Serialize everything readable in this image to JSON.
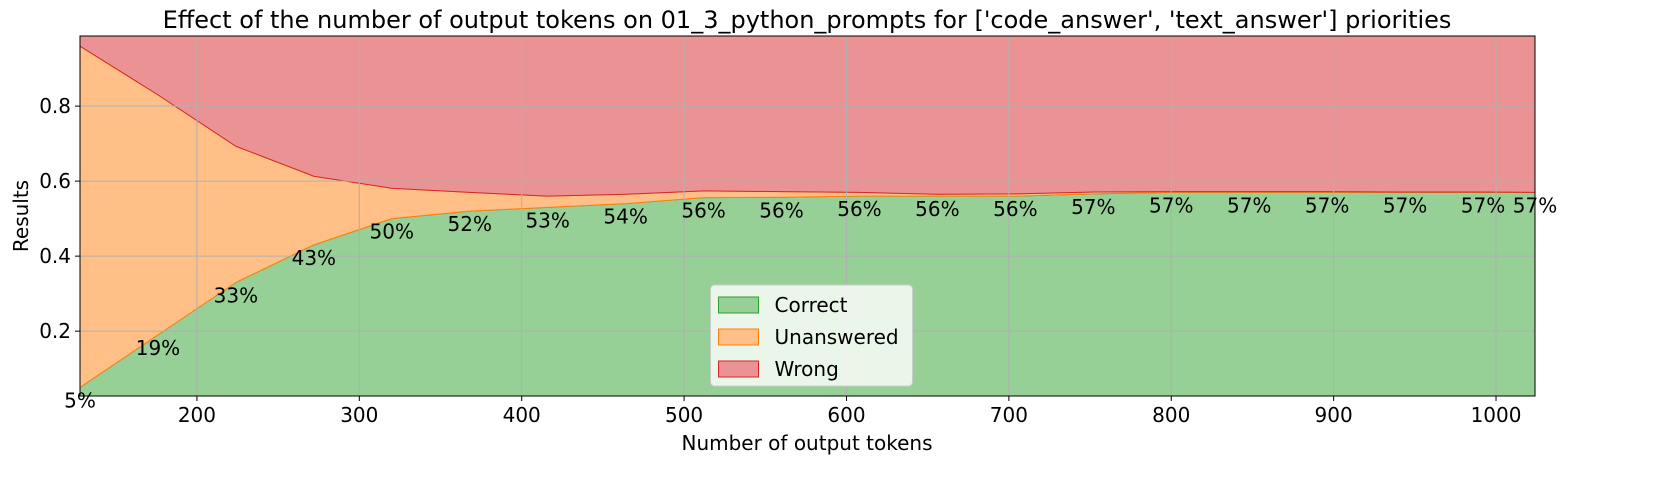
{
  "chart_data": {
    "type": "stacked_area",
    "title": "Effect of the number of output tokens on 01_3_python_prompts for ['code_answer', 'text_answer'] priorities",
    "x_label": "Number of output tokens",
    "y_label": "Results",
    "x": [
      128,
      176,
      224,
      272,
      320,
      368,
      416,
      464,
      512,
      560,
      608,
      656,
      704,
      752,
      800,
      848,
      896,
      944,
      992,
      1024
    ],
    "series": [
      {
        "name": "Correct",
        "color": "#2ca02c",
        "values": [
          0.05,
          0.19,
          0.33,
          0.43,
          0.5,
          0.52,
          0.53,
          0.54,
          0.556,
          0.557,
          0.56,
          0.56,
          0.56,
          0.566,
          0.57,
          0.57,
          0.57,
          0.57,
          0.57,
          0.57
        ],
        "value_labels": [
          "5%",
          "19%",
          "33%",
          "43%",
          "50%",
          "52%",
          "53%",
          "54%",
          "56%",
          "56%",
          "56%",
          "56%",
          "56%",
          "57%",
          "57%",
          "57%",
          "57%",
          "57%",
          "57%",
          "57%"
        ]
      },
      {
        "name": "Unanswered",
        "color": "#ff7f0e",
        "values": [
          0.91,
          0.64,
          0.363,
          0.183,
          0.081,
          0.05,
          0.03,
          0.025,
          0.018,
          0.015,
          0.01,
          0.005,
          0.006,
          0.005,
          0.002,
          0.002,
          0.002,
          0.001,
          0.001,
          0
        ]
      },
      {
        "name": "Wrong",
        "color": "#d62728",
        "values": [
          0.04,
          0.17,
          0.307,
          0.387,
          0.419,
          0.43,
          0.44,
          0.435,
          0.426,
          0.428,
          0.43,
          0.435,
          0.434,
          0.429,
          0.428,
          0.428,
          0.428,
          0.429,
          0.429,
          0.43
        ]
      }
    ],
    "xlim": [
      128,
      1024
    ],
    "ylim": [
      0.027,
      0.987
    ],
    "xticks": [
      200,
      300,
      400,
      500,
      600,
      700,
      800,
      900,
      1000
    ],
    "yticks": [
      0.2,
      0.4,
      0.6,
      0.8
    ],
    "grid": true,
    "legend": "lower center"
  }
}
